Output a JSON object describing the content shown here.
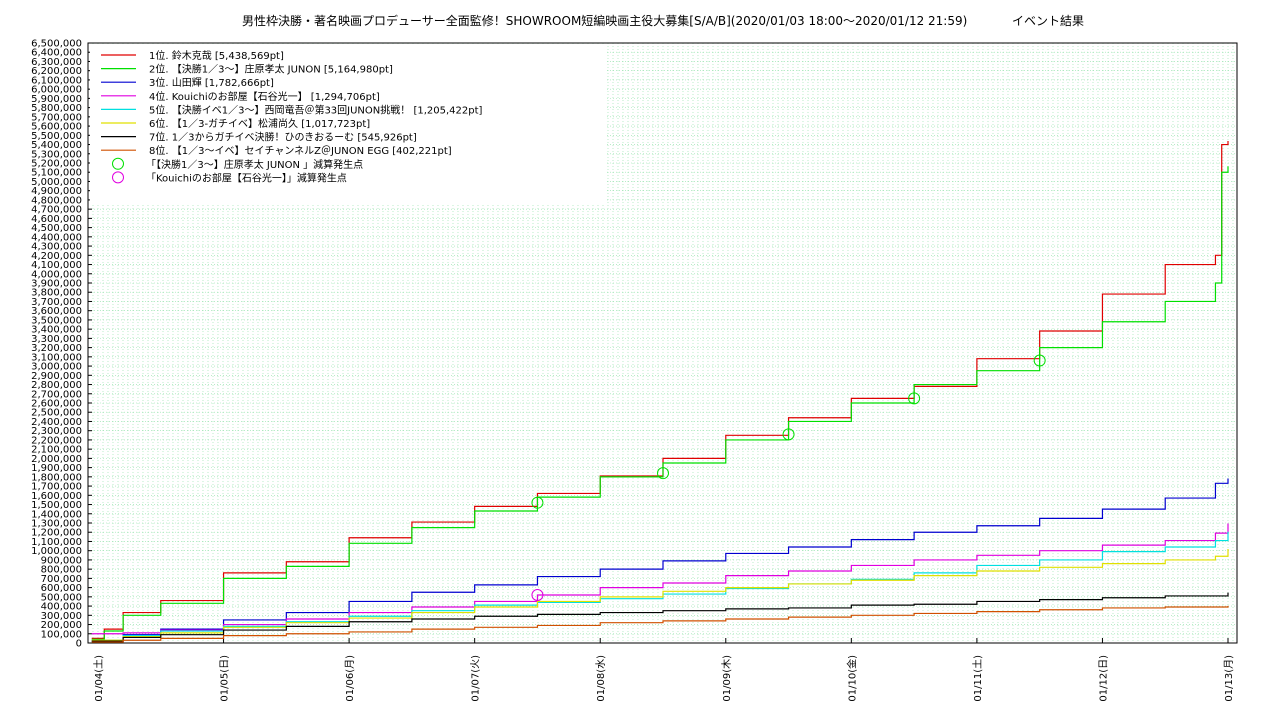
{
  "chart_data": {
    "type": "line",
    "title": "男性枠決勝・著名映画プロデューサー全面監修！SHOWROOM短編映画主役大募集[S/A/B](2020/01/03 18:00～2020/01/12 21:59)",
    "subtitle": "イベント結果",
    "xlabel": "",
    "ylabel": "",
    "ylim": [
      0,
      6500000
    ],
    "y_tick_step": 100000,
    "xlim": [
      0,
      9
    ],
    "x_ticks": [
      "01/04(土)",
      "01/05(日)",
      "01/06(月)",
      "01/07(火)",
      "01/08(水)",
      "01/09(木)",
      "01/10(金)",
      "01/11(土)",
      "01/12(日)",
      "01/13(月)"
    ],
    "grid": true,
    "legend_position": "top-left",
    "series": [
      {
        "name": "1位. 鈴木克哉 [5,438,569pt]",
        "color": "#e00000",
        "x": [
          -0.05,
          0.05,
          0.2,
          0.5,
          1.0,
          1.5,
          2.0,
          2.5,
          3.0,
          3.5,
          4.0,
          4.5,
          5.0,
          5.5,
          6.0,
          6.5,
          7.0,
          7.5,
          8.0,
          8.5,
          8.9,
          8.95,
          9.0
        ],
        "y": [
          50000,
          150000,
          330000,
          460000,
          760000,
          880000,
          1140000,
          1310000,
          1480000,
          1620000,
          1810000,
          2000000,
          2250000,
          2440000,
          2650000,
          2780000,
          3080000,
          3380000,
          3780000,
          4100000,
          4200000,
          5400000,
          5438569
        ]
      },
      {
        "name": "2位. 【決勝1／3～】庄原孝太 JUNON [5,164,980pt]",
        "color": "#00e000",
        "x": [
          -0.05,
          0.05,
          0.2,
          0.5,
          1.0,
          1.5,
          2.0,
          2.5,
          3.0,
          3.5,
          4.0,
          4.5,
          5.0,
          5.5,
          6.0,
          6.5,
          7.0,
          7.5,
          8.0,
          8.5,
          8.9,
          8.95,
          9.0
        ],
        "y": [
          40000,
          130000,
          300000,
          430000,
          700000,
          830000,
          1080000,
          1250000,
          1430000,
          1580000,
          1800000,
          1950000,
          2200000,
          2400000,
          2600000,
          2800000,
          2950000,
          3200000,
          3480000,
          3700000,
          3900000,
          5100000,
          5164980
        ]
      },
      {
        "name": "3位. 山田輝 [1,782,666pt]",
        "color": "#0000d0",
        "x": [
          -0.05,
          0.2,
          0.5,
          1.0,
          1.5,
          2.0,
          2.5,
          3.0,
          3.5,
          4.0,
          4.5,
          5.0,
          5.5,
          6.0,
          6.5,
          7.0,
          7.5,
          8.0,
          8.5,
          8.9,
          9.0
        ],
        "y": [
          20000,
          90000,
          150000,
          250000,
          330000,
          450000,
          550000,
          630000,
          720000,
          800000,
          890000,
          970000,
          1040000,
          1120000,
          1200000,
          1270000,
          1350000,
          1450000,
          1570000,
          1730000,
          1782666
        ]
      },
      {
        "name": "4位. Kouichiのお部屋【石谷光一】 [1,294,706pt]",
        "color": "#e000e0",
        "x": [
          -0.05,
          0.2,
          0.5,
          1.0,
          1.5,
          2.0,
          2.5,
          3.0,
          3.5,
          4.0,
          4.5,
          5.0,
          5.5,
          6.0,
          6.5,
          7.0,
          7.5,
          8.0,
          8.5,
          8.9,
          9.0
        ],
        "y": [
          100000,
          110000,
          140000,
          200000,
          260000,
          330000,
          390000,
          450000,
          520000,
          600000,
          650000,
          730000,
          780000,
          840000,
          900000,
          950000,
          1000000,
          1060000,
          1110000,
          1190000,
          1294706
        ]
      },
      {
        "name": "5位. 【決勝イベ1／3～】西岡竜吾＠第33回JUNON挑戦！ [1,205,422pt]",
        "color": "#00e0e0",
        "x": [
          -0.05,
          0.2,
          0.5,
          1.0,
          1.5,
          2.0,
          2.5,
          3.0,
          3.5,
          4.0,
          4.5,
          5.0,
          5.5,
          6.0,
          6.5,
          7.0,
          7.5,
          8.0,
          8.5,
          8.9,
          9.0
        ],
        "y": [
          30000,
          80000,
          130000,
          180000,
          230000,
          290000,
          350000,
          410000,
          440000,
          480000,
          530000,
          590000,
          640000,
          690000,
          760000,
          840000,
          900000,
          990000,
          1040000,
          1110000,
          1205422
        ]
      },
      {
        "name": "6位. 【1／3-ガチイベ】松浦尚久 [1,017,723pt]",
        "color": "#e0e000",
        "x": [
          -0.05,
          0.2,
          0.5,
          1.0,
          1.5,
          2.0,
          2.5,
          3.0,
          3.5,
          4.0,
          4.5,
          5.0,
          5.5,
          6.0,
          6.5,
          7.0,
          7.5,
          8.0,
          8.5,
          8.9,
          9.0
        ],
        "y": [
          30000,
          70000,
          110000,
          170000,
          220000,
          270000,
          330000,
          390000,
          450000,
          500000,
          560000,
          600000,
          640000,
          680000,
          730000,
          780000,
          820000,
          860000,
          900000,
          940000,
          1017723
        ]
      },
      {
        "name": "7位. 1／3からガチイベ決勝！ひのきおるーむ [545,926pt]",
        "color": "#000000",
        "x": [
          -0.05,
          0.2,
          0.5,
          1.0,
          1.5,
          2.0,
          2.5,
          3.0,
          3.5,
          4.0,
          4.5,
          5.0,
          5.5,
          6.0,
          6.5,
          7.0,
          7.5,
          8.0,
          8.5,
          9.0
        ],
        "y": [
          20000,
          60000,
          90000,
          140000,
          180000,
          230000,
          260000,
          290000,
          310000,
          330000,
          350000,
          370000,
          380000,
          410000,
          420000,
          450000,
          470000,
          490000,
          510000,
          545926
        ]
      },
      {
        "name": "8位. 【1／3～イベ】セイチャンネルZ＠JUNON EGG [402,221pt]",
        "color": "#d05000",
        "x": [
          -0.05,
          0.2,
          0.5,
          1.0,
          1.5,
          2.0,
          2.5,
          3.0,
          3.5,
          4.0,
          4.5,
          5.0,
          5.5,
          6.0,
          6.5,
          7.0,
          7.5,
          8.0,
          8.5,
          9.0
        ],
        "y": [
          10000,
          30000,
          50000,
          80000,
          100000,
          120000,
          150000,
          170000,
          190000,
          220000,
          240000,
          260000,
          280000,
          300000,
          320000,
          340000,
          360000,
          380000,
          390000,
          402221
        ]
      }
    ],
    "markers": [
      {
        "name": "「【決勝1／3～】庄原孝太 JUNON 」減算発生点",
        "color": "#00e000",
        "x": [
          3.5,
          4.5,
          5.5,
          6.5,
          7.5
        ],
        "y": [
          1520000,
          1840000,
          2260000,
          2650000,
          3060000
        ]
      },
      {
        "name": "「Kouichiのお部屋【石谷光一】」減算発生点",
        "color": "#e000e0",
        "x": [
          3.5
        ],
        "y": [
          520000
        ]
      }
    ]
  }
}
